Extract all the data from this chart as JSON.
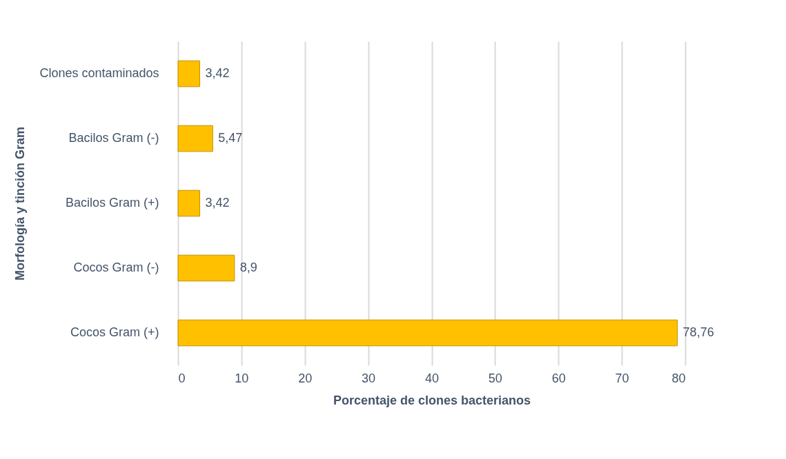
{
  "chart_data": {
    "type": "bar",
    "orientation": "horizontal",
    "xlabel": "Porcentaje de clones bacterianos",
    "ylabel": "Morfología y tinción Gram",
    "categories": [
      "Clones contaminados",
      "Bacilos Gram (-)",
      "Bacilos Gram (+)",
      "Cocos Gram (-)",
      "Cocos Gram (+)"
    ],
    "values": [
      3.42,
      5.47,
      3.42,
      8.9,
      78.76
    ],
    "value_labels": [
      "3,42",
      "5,47",
      "3,42",
      "8,9",
      "78,76"
    ],
    "color": "#ffc000",
    "xlim": [
      0,
      80
    ],
    "xticks": [
      0,
      10,
      20,
      30,
      40,
      50,
      60,
      70,
      80
    ],
    "grid": "x"
  }
}
